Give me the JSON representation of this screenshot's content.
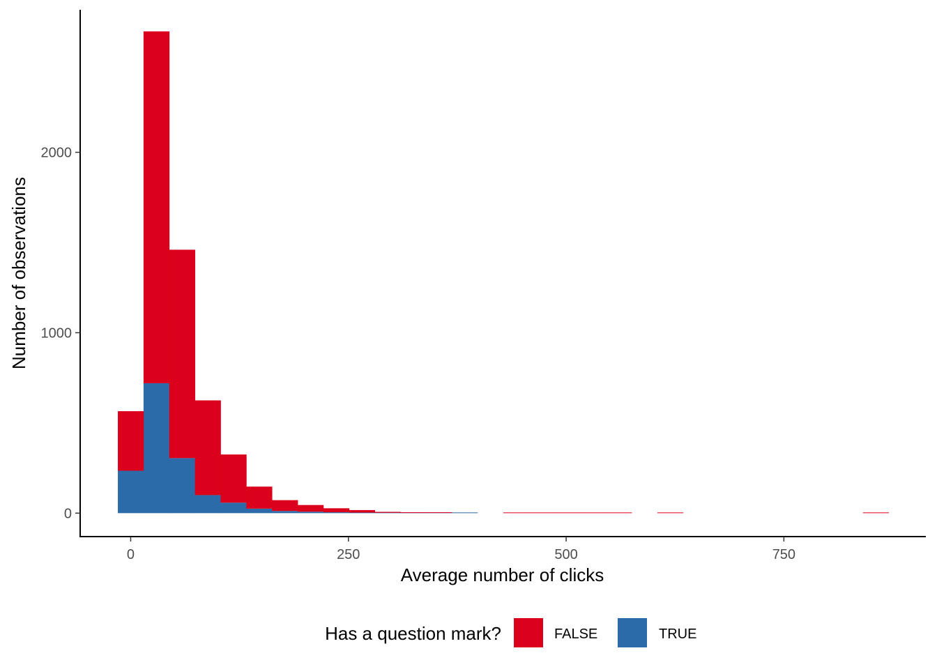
{
  "chart_data": {
    "type": "bar",
    "subtype": "stacked-histogram",
    "title": "",
    "xlabel": "Average number of clicks",
    "ylabel": "Number of observations",
    "xlim": [
      -58,
      913
    ],
    "ylim": [
      -130,
      2790
    ],
    "x_ticks": [
      0,
      250,
      500,
      750
    ],
    "y_ticks": [
      0,
      1000,
      2000
    ],
    "grid": false,
    "legend": {
      "title": "Has a question mark?",
      "position": "bottom"
    },
    "bin_width": 29.5,
    "bins": [
      {
        "x0": -14.75,
        "x1": 14.75
      },
      {
        "x0": 14.75,
        "x1": 44.25
      },
      {
        "x0": 44.25,
        "x1": 73.75
      },
      {
        "x0": 73.75,
        "x1": 103.25
      },
      {
        "x0": 103.25,
        "x1": 132.75
      },
      {
        "x0": 132.75,
        "x1": 162.25
      },
      {
        "x0": 162.25,
        "x1": 191.75
      },
      {
        "x0": 191.75,
        "x1": 221.25
      },
      {
        "x0": 221.25,
        "x1": 250.75
      },
      {
        "x0": 250.75,
        "x1": 280.25
      },
      {
        "x0": 280.25,
        "x1": 309.75
      },
      {
        "x0": 309.75,
        "x1": 339.25
      },
      {
        "x0": 339.25,
        "x1": 368.75
      },
      {
        "x0": 368.75,
        "x1": 398.25
      },
      {
        "x0": 398.25,
        "x1": 427.75
      },
      {
        "x0": 427.75,
        "x1": 457.25
      },
      {
        "x0": 457.25,
        "x1": 486.75
      },
      {
        "x0": 486.75,
        "x1": 516.25
      },
      {
        "x0": 516.25,
        "x1": 545.75
      },
      {
        "x0": 545.75,
        "x1": 575.25
      },
      {
        "x0": 575.25,
        "x1": 604.75
      },
      {
        "x0": 604.75,
        "x1": 634.25
      },
      {
        "x0": 634.25,
        "x1": 663.75
      },
      {
        "x0": 663.75,
        "x1": 693.25
      },
      {
        "x0": 693.25,
        "x1": 722.75
      },
      {
        "x0": 722.75,
        "x1": 752.25
      },
      {
        "x0": 752.25,
        "x1": 781.75
      },
      {
        "x0": 781.75,
        "x1": 811.25
      },
      {
        "x0": 811.25,
        "x1": 840.75
      },
      {
        "x0": 840.75,
        "x1": 870.25
      }
    ],
    "series": [
      {
        "name": "TRUE",
        "color": "#2c6ba9",
        "values": [
          235,
          720,
          305,
          100,
          58,
          25,
          12,
          8,
          5,
          3,
          2,
          1,
          1,
          1,
          0,
          0,
          0,
          0,
          0,
          0,
          0,
          0,
          0,
          0,
          0,
          0,
          0,
          0,
          0,
          0
        ]
      },
      {
        "name": "FALSE",
        "color": "#db001b",
        "values": [
          330,
          1950,
          1155,
          525,
          267,
          122,
          60,
          37,
          22,
          14,
          5,
          4,
          3,
          0,
          0,
          1,
          1,
          1,
          1,
          1,
          0,
          1,
          0,
          0,
          0,
          0,
          0,
          0,
          0,
          1
        ]
      }
    ]
  }
}
